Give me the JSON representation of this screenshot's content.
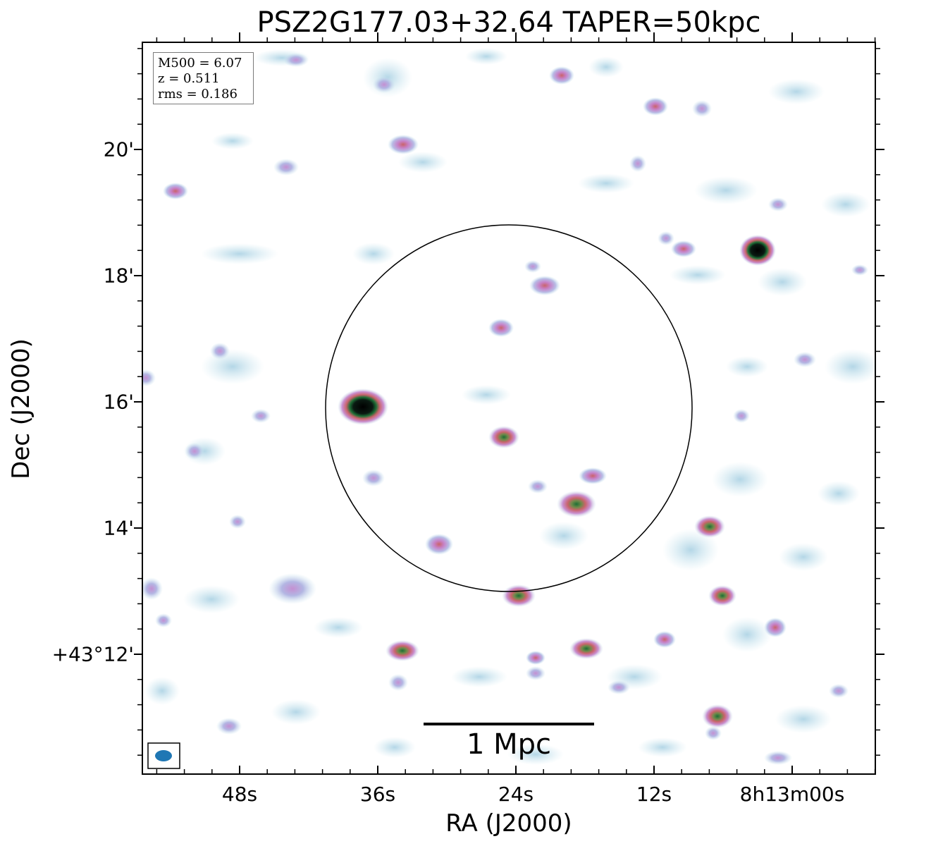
{
  "title": "PSZ2G177.03+32.64 TAPER=50kpc",
  "axes": {
    "xlabel": "RA (J2000)",
    "ylabel": "Dec (J2000)",
    "xticks": [
      "48s",
      "36s",
      "24s",
      "12s",
      "8h13m00s"
    ],
    "yticks": [
      "20'",
      "18'",
      "16'",
      "14'",
      "+43°12'"
    ]
  },
  "info": {
    "m500": "M500 = 6.07",
    "z": "z = 0.511",
    "rms": "rms = 0.186"
  },
  "scalebar": {
    "label": "1 Mpc"
  },
  "colors": {
    "background": "#ffffff",
    "beam": "#1f77b4",
    "axes": "#000000"
  },
  "icons": {
    "beam": "beam-ellipse-icon"
  }
}
